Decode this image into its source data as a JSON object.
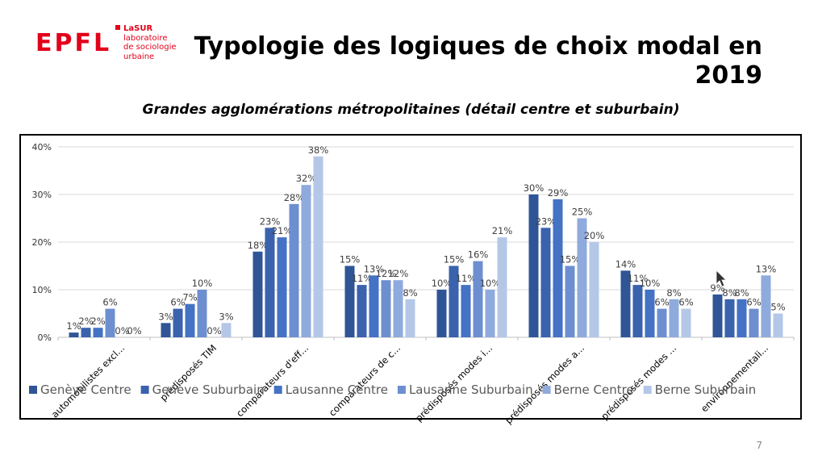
{
  "logo": {
    "text": "EPFL"
  },
  "lab": {
    "name": "LaSUR",
    "lines": [
      "laboratoire",
      "de sociologie",
      "urbaine"
    ]
  },
  "slide": {
    "title": "Typologie des logiques de choix modal en 2019",
    "subtitle": "Grandes agglomérations métropolitaines (détail centre et suburbain)",
    "page_number": "7"
  },
  "colors": [
    "#2f5597",
    "#3a62ad",
    "#4472c4",
    "#6d8fd0",
    "#8faadc",
    "#b4c7e7"
  ],
  "chart_data": {
    "type": "bar",
    "categories": [
      "automobilistes excl...",
      "prédisposés TIM",
      "comparateurs d'eff...",
      "comparateurs de c...",
      "prédisposés modes i...",
      "prédisposés modes a...",
      "prédisposés modes ...",
      "environnementali..."
    ],
    "series": [
      {
        "name": "Genève Centre",
        "values": [
          1,
          3,
          18,
          15,
          10,
          30,
          14,
          9
        ],
        "labels": [
          "1%",
          "3%",
          "18%",
          "15%",
          "10%",
          "30%",
          "14%",
          "9%"
        ]
      },
      {
        "name": "Genève Suburbain",
        "values": [
          2,
          6,
          23,
          11,
          15,
          23,
          11,
          8
        ],
        "labels": [
          "2%",
          "6%",
          "23%",
          "11%",
          "15%",
          "23%",
          "11%",
          "8%"
        ]
      },
      {
        "name": "Lausanne Centre",
        "values": [
          2,
          7,
          21,
          13,
          11,
          29,
          10,
          8
        ],
        "labels": [
          "2%",
          "7%",
          "21%",
          "13%",
          "11%",
          "29%",
          "10%",
          "8%"
        ]
      },
      {
        "name": "Lausanne Suburbain",
        "values": [
          6,
          10,
          28,
          12,
          16,
          15,
          6,
          6
        ],
        "labels": [
          "6%",
          "10%",
          "28%",
          "12%",
          "16%",
          "15%",
          "6%",
          "6%"
        ]
      },
      {
        "name": "Berne Centre",
        "values": [
          0,
          0,
          32,
          12,
          10,
          25,
          8,
          13
        ],
        "labels": [
          "0%",
          "0%",
          "32%",
          "12%",
          "10%",
          "25%",
          "8%",
          "13%"
        ]
      },
      {
        "name": "Berne Suburbain",
        "values": [
          0,
          3,
          38,
          8,
          21,
          20,
          6,
          5
        ],
        "labels": [
          "0%",
          "3%",
          "38%",
          "8%",
          "21%",
          "20%",
          "6%",
          "5%"
        ]
      }
    ],
    "ylim": [
      0,
      40
    ],
    "yticks": [
      "0%",
      "10%",
      "20%",
      "30%",
      "40%"
    ],
    "grid": true,
    "legend_position": "bottom"
  }
}
